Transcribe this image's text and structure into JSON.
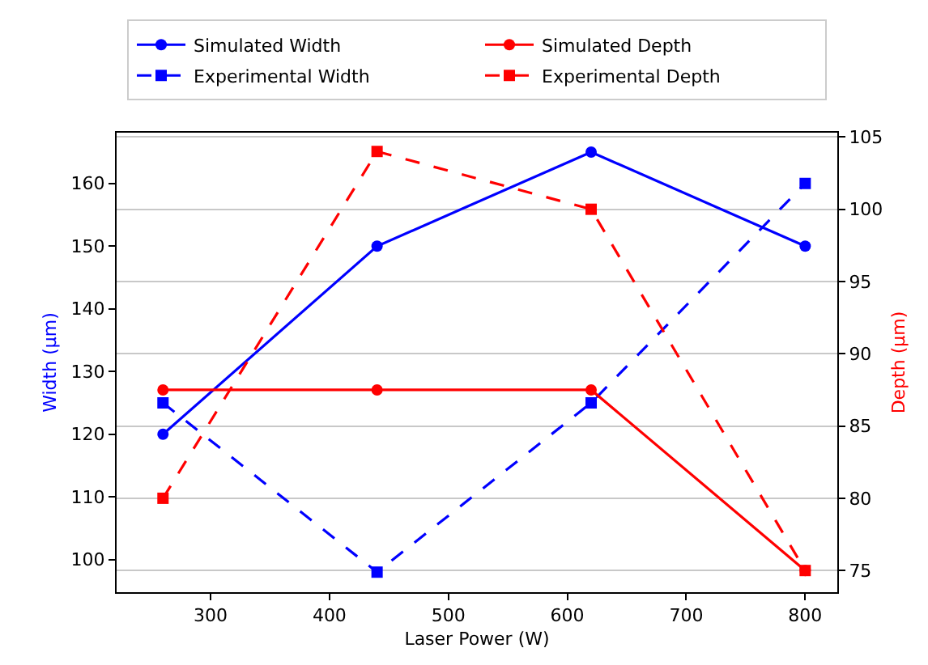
{
  "chart_data": {
    "type": "line",
    "xlabel": "Laser Power (W)",
    "ylabel": "Width (µm)",
    "y2label": "Depth (µm)",
    "x": [
      260,
      440,
      620,
      800
    ],
    "series": [
      {
        "name": "Simulated Width",
        "color": "#0000ff",
        "marker": "circle",
        "line_style": "solid",
        "values": [
          120,
          150,
          165,
          150
        ]
      },
      {
        "name": "Simulated Depth",
        "color": "#ff0000",
        "marker": "circle",
        "line_style": "solid",
        "axis": "y2",
        "values": [
          87.5,
          87.5,
          87.5,
          75
        ]
      },
      {
        "name": "Experimental Width",
        "color": "#0000ff",
        "marker": "square",
        "line_style": "dashed",
        "values": [
          125,
          98,
          125,
          160
        ]
      },
      {
        "name": "Experimental Depth",
        "color": "#ff0000",
        "marker": "square",
        "line_style": "dashed",
        "axis": "y2",
        "values": [
          80,
          104,
          100,
          75
        ]
      }
    ],
    "xlim": [
      221,
      827
    ],
    "xticks": [
      300,
      400,
      500,
      600,
      700,
      800
    ],
    "ylim": [
      94.8,
      168.1
    ],
    "yticks": [
      100,
      110,
      120,
      130,
      140,
      150,
      160
    ],
    "y2lim": [
      73.5,
      105.3
    ],
    "y2ticks": [
      75,
      80,
      85,
      90,
      95,
      100,
      105
    ],
    "grid": "y2",
    "legend": "top"
  }
}
